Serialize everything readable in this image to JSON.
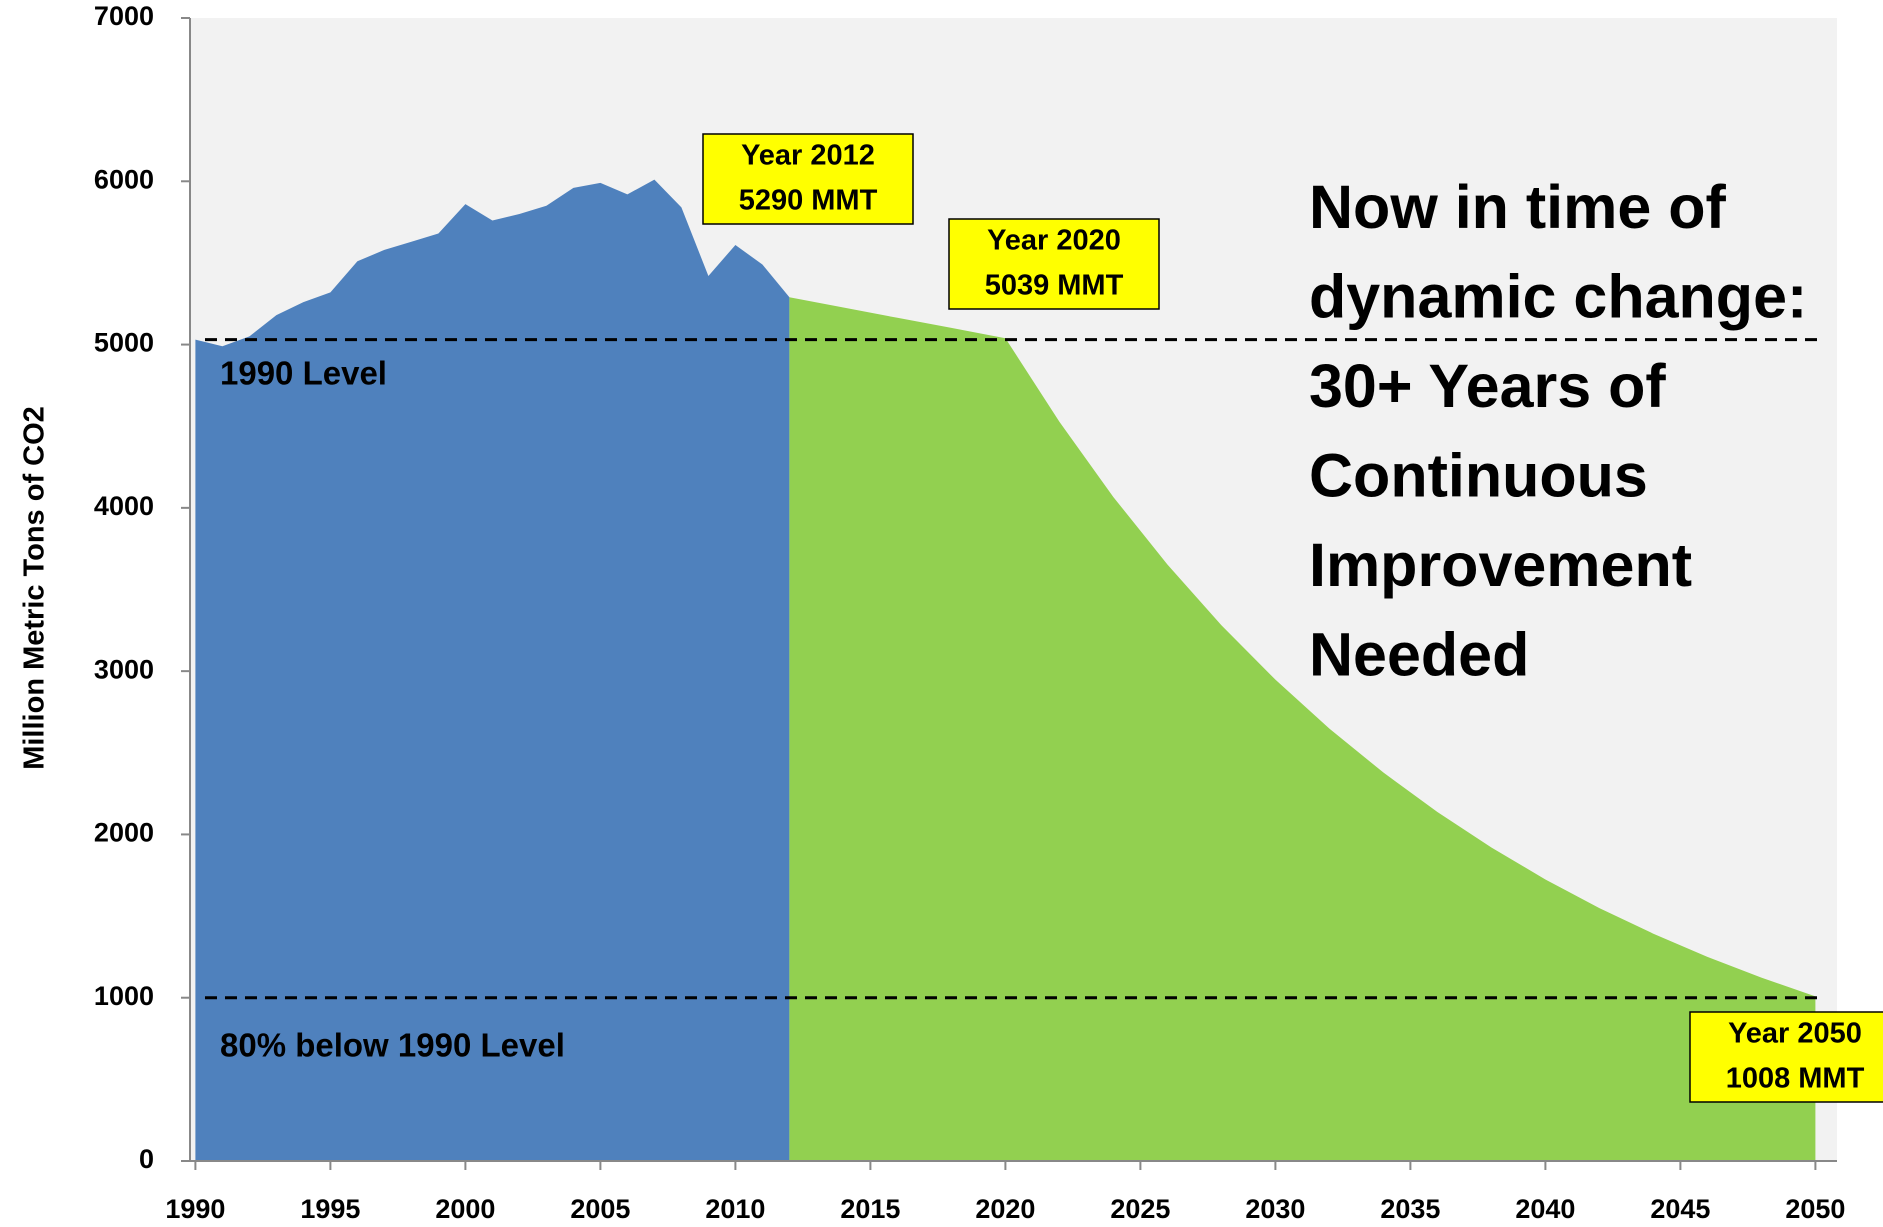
{
  "chart_data": {
    "type": "area",
    "ylabel": "Million Metric Tons of CO2",
    "xlim": [
      1989.8,
      2050.8
    ],
    "xticks": [
      1990,
      1995,
      2000,
      2005,
      2010,
      2015,
      2020,
      2025,
      2030,
      2035,
      2040,
      2045,
      2050
    ],
    "ylim": [
      0,
      7000
    ],
    "yticks": [
      0,
      1000,
      2000,
      3000,
      4000,
      5000,
      6000,
      7000
    ],
    "series": [
      {
        "color": "#4f81bd",
        "x": [
          1990,
          1991,
          1992,
          1993,
          1994,
          1995,
          1996,
          1997,
          1998,
          1999,
          2000,
          2001,
          2002,
          2003,
          2004,
          2005,
          2006,
          2007,
          2008,
          2009,
          2010,
          2011,
          2012
        ],
        "values": [
          5030,
          4990,
          5050,
          5180,
          5260,
          5320,
          5510,
          5580,
          5630,
          5680,
          5860,
          5760,
          5800,
          5850,
          5960,
          5990,
          5920,
          6010,
          5840,
          5420,
          5610,
          5490,
          5290
        ]
      },
      {
        "color": "#92d050",
        "x": [
          2012,
          2014,
          2016,
          2018,
          2020,
          2022,
          2024,
          2026,
          2028,
          2030,
          2032,
          2034,
          2036,
          2038,
          2040,
          2042,
          2044,
          2046,
          2048,
          2050
        ],
        "values": [
          5290,
          5227,
          5164,
          5102,
          5039,
          4527,
          4066,
          3653,
          3281,
          2948,
          2648,
          2379,
          2137,
          1920,
          1724,
          1549,
          1392,
          1250,
          1123,
          1008
        ]
      }
    ],
    "hlines": [
      {
        "value": 5030,
        "label": "1990 Level"
      },
      {
        "value": 1000,
        "label": "80% below 1990 Level"
      }
    ],
    "annotations": [
      [
        "Year 2012",
        "5290 MMT"
      ],
      [
        "Year 2020",
        "5039 MMT"
      ],
      [
        "Year 2050",
        "1008 MMT"
      ]
    ],
    "note": [
      "Now in time of",
      "dynamic change:",
      "30+ Years of",
      "Continuous",
      "Improvement",
      "Needed"
    ]
  }
}
